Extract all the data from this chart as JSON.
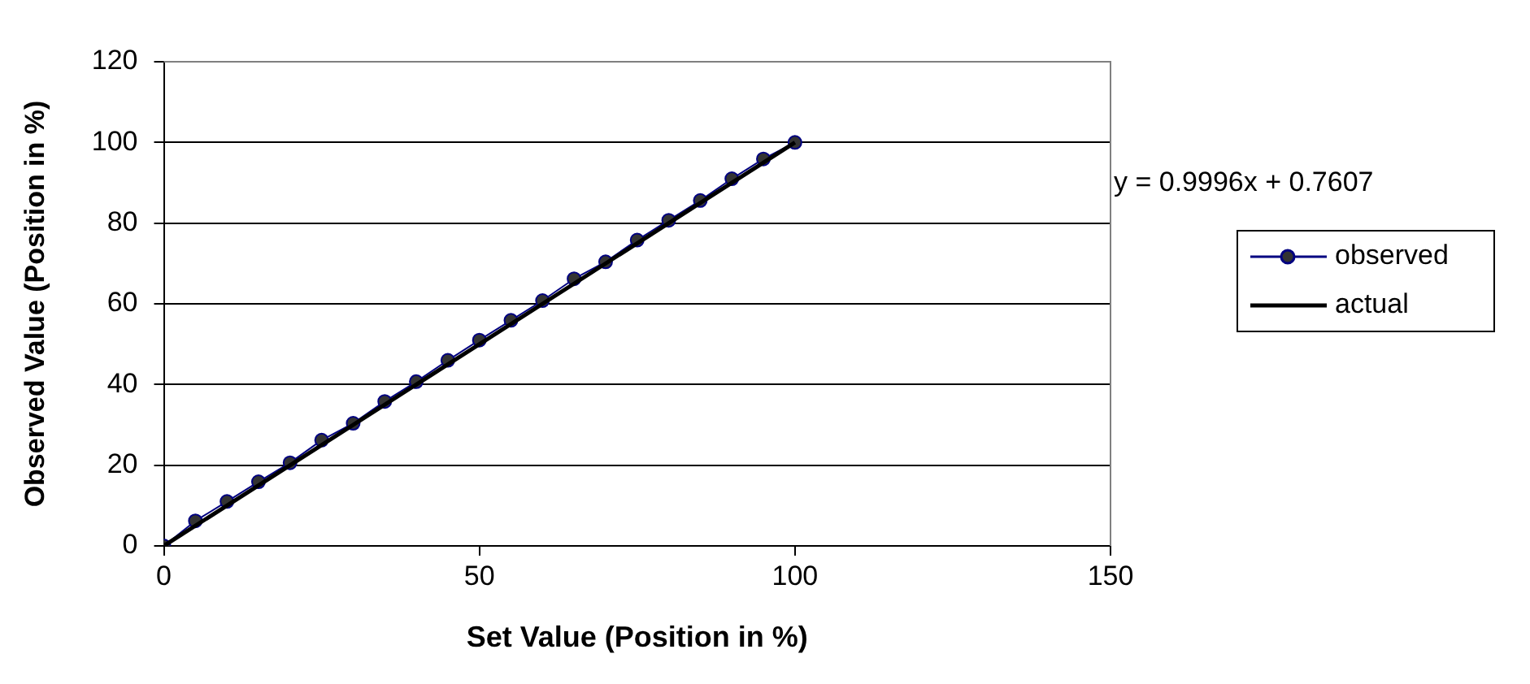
{
  "chart_data": {
    "type": "line",
    "xlabel": "Set Value (Position in %)",
    "ylabel": "Observed Value (Position in %)",
    "x": [
      0,
      5,
      10,
      15,
      20,
      25,
      30,
      35,
      40,
      45,
      50,
      55,
      60,
      65,
      70,
      75,
      80,
      85,
      90,
      95,
      100
    ],
    "series": [
      {
        "name": "observed",
        "color": "#000080",
        "marker": "circle",
        "values": [
          0,
          6.2,
          11,
          15.9,
          20.6,
          26.2,
          30.4,
          35.8,
          40.7,
          46,
          51,
          55.9,
          60.8,
          66.2,
          70.4,
          75.8,
          80.7,
          85.6,
          91,
          95.9,
          100
        ]
      },
      {
        "name": "actual",
        "color": "#000000",
        "marker": "none",
        "x": [
          0,
          100
        ],
        "values": [
          0,
          100
        ]
      }
    ],
    "xlim": [
      0,
      150
    ],
    "xticks": [
      0,
      50,
      100,
      150
    ],
    "ylim": [
      0,
      120
    ],
    "yticks": [
      0,
      20,
      40,
      60,
      80,
      100,
      120
    ],
    "grid": "y",
    "legend": "right",
    "line_style": "solid",
    "annotations": [
      "y = 0.9996x + 0.7607"
    ]
  }
}
